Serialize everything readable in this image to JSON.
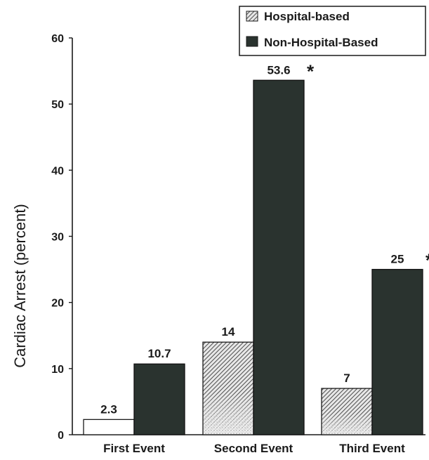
{
  "chart_data": {
    "type": "bar",
    "title": "",
    "xlabel": "",
    "ylabel": "Cardiac Arrest (percent)",
    "ylim": [
      0,
      60
    ],
    "yticks": [
      0,
      10,
      20,
      30,
      40,
      50,
      60
    ],
    "categories": [
      "First Event",
      "Second Event",
      "Third Event"
    ],
    "series": [
      {
        "name": "Hospital-based",
        "values": [
          2.3,
          14,
          7
        ],
        "value_labels": [
          "2.3",
          "14",
          "7"
        ],
        "pattern": "hatched-stipple"
      },
      {
        "name": "Non-Hospital-Based",
        "values": [
          10.7,
          53.6,
          25
        ],
        "value_labels": [
          "10.7",
          "53.6",
          "25"
        ],
        "color": "#2a332f",
        "significance": [
          "",
          "*",
          "*"
        ]
      }
    ],
    "legend_position": "top-right",
    "grid": false,
    "colors": {
      "dark_bar": "#2a332f",
      "axis": "#1a1a1a",
      "text": "#1a1a1a"
    }
  }
}
